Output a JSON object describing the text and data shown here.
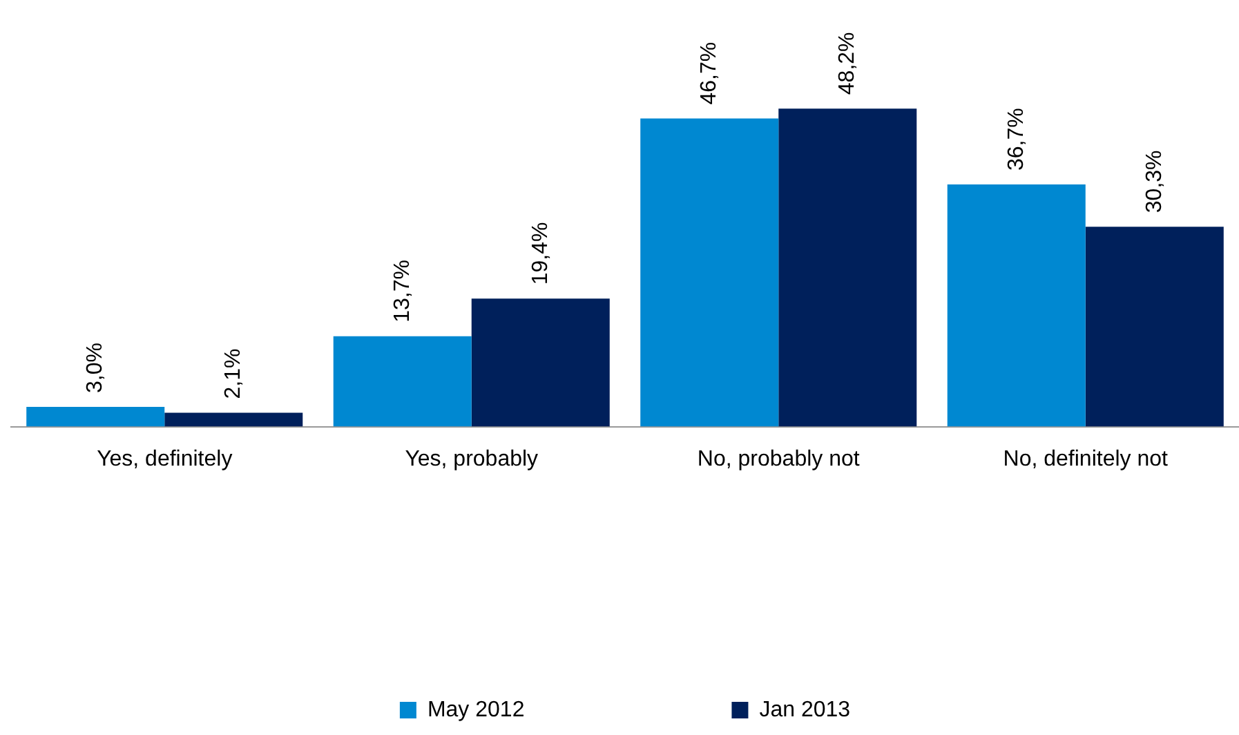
{
  "chart_data": {
    "type": "bar",
    "categories": [
      "Yes, definitely",
      "Yes, probably",
      "No, probably not",
      "No, definitely not"
    ],
    "series": [
      {
        "name": "May 2012",
        "color": "#0088d1",
        "values": [
          3.0,
          13.7,
          46.7,
          36.7
        ],
        "value_labels": [
          "3,0%",
          "13,7%",
          "46,7%",
          "36,7%"
        ]
      },
      {
        "name": "Jan 2013",
        "color": "#00205b",
        "values": [
          2.1,
          19.4,
          48.2,
          30.3
        ],
        "value_labels": [
          "2,1%",
          "19,4%",
          "48,2%",
          "30,3%"
        ]
      }
    ],
    "grid": false,
    "legend": "bottom"
  }
}
